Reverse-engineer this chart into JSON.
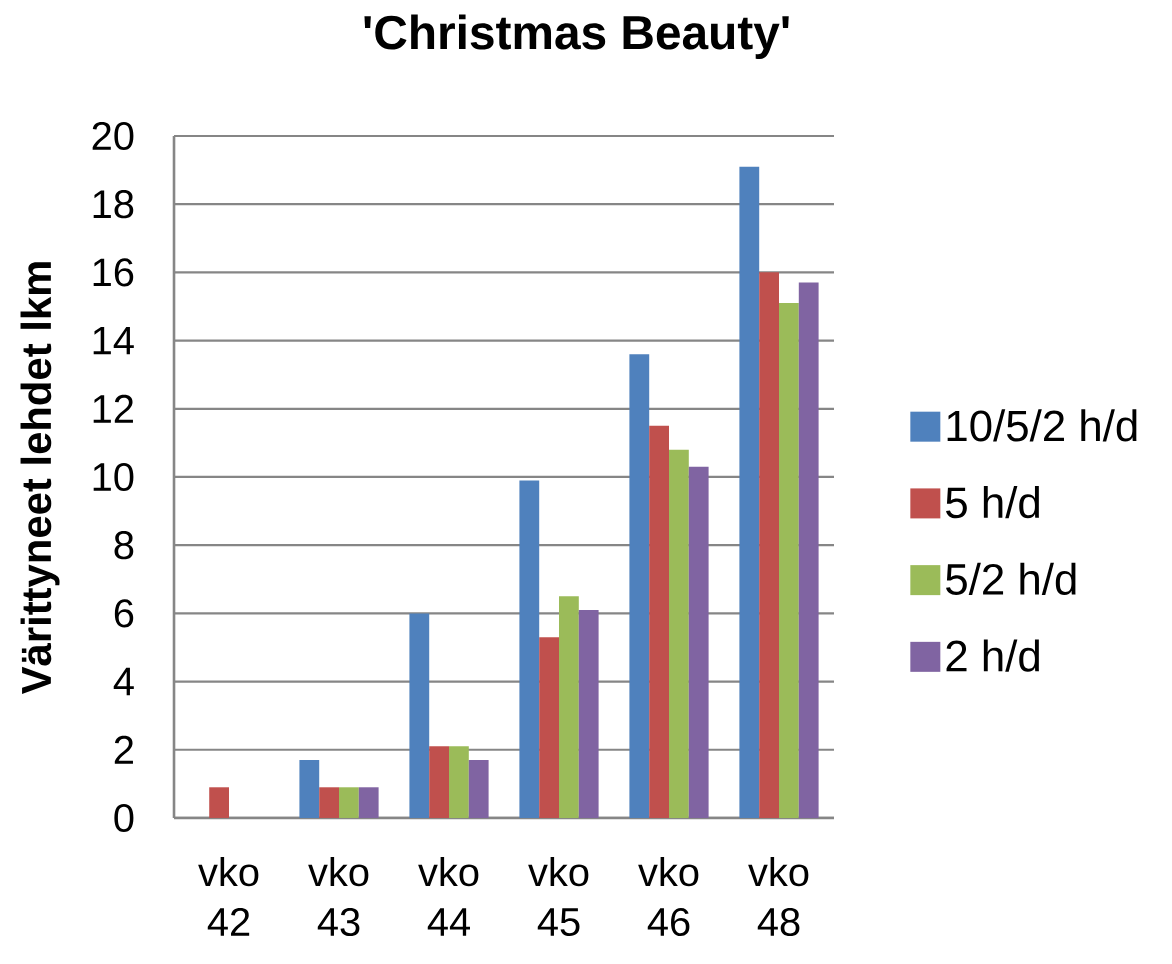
{
  "chart_data": {
    "type": "bar",
    "title": "'Christmas Beauty'",
    "ylabel": "Värittyneet lehdet lkm",
    "categories": [
      "vko 42",
      "vko 43",
      "vko 44",
      "vko 45",
      "vko 46",
      "vko 48"
    ],
    "series": [
      {
        "name": "10/5/2 h/d",
        "color": "#4f81bd",
        "values": [
          null,
          1.7,
          6.0,
          9.9,
          13.6,
          19.1
        ]
      },
      {
        "name": "5 h/d",
        "color": "#c0504d",
        "values": [
          0.9,
          0.9,
          2.1,
          5.3,
          11.5,
          16.0
        ]
      },
      {
        "name": "5/2 h/d",
        "color": "#9bbb59",
        "values": [
          null,
          0.9,
          2.1,
          6.5,
          10.8,
          15.1
        ]
      },
      {
        "name": "2 h/d",
        "color": "#8064a2",
        "values": [
          null,
          0.9,
          1.7,
          6.1,
          10.3,
          15.7
        ]
      }
    ],
    "ylim": [
      0,
      20
    ],
    "yticks": [
      0,
      2,
      4,
      6,
      8,
      10,
      12,
      14,
      16,
      18,
      20
    ],
    "grid": "y",
    "legend": "right"
  }
}
